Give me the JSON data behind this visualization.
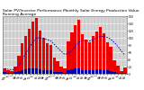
{
  "title": "Solar PV/Inverter Performance Monthly Solar Energy Production Value Running Average",
  "bar_color": "#ee0000",
  "line_color": "#0000cc",
  "small_bar_color": "#0000bb",
  "background_color": "#ffffff",
  "grid_color": "#ffffff",
  "plot_bg": "#cccccc",
  "months": [
    "My",
    "Jn",
    "Jl",
    "Ag",
    "Sp",
    "Oc",
    "Nv",
    "Dc",
    "Jn",
    "Fb",
    "Mr",
    "Ap",
    "My",
    "Jn",
    "Jl",
    "Ag",
    "Sp",
    "Oc",
    "Nv",
    "Dc",
    "Jn",
    "Fb",
    "Mr",
    "Ap",
    "My",
    "Jn",
    "Jl",
    "Ag",
    "Sp",
    "Oc",
    "Nv",
    "Dc",
    "Jn",
    "Fb",
    "Mr"
  ],
  "values": [
    15,
    10,
    8,
    20,
    50,
    85,
    105,
    125,
    145,
    155,
    120,
    100,
    85,
    80,
    45,
    35,
    20,
    15,
    90,
    115,
    135,
    150,
    110,
    95,
    88,
    105,
    118,
    130,
    112,
    88,
    75,
    38,
    22,
    8,
    18
  ],
  "small_values": [
    4,
    3,
    2,
    5,
    8,
    10,
    12,
    14,
    15,
    16,
    12,
    10,
    9,
    9,
    6,
    5,
    4,
    3,
    9,
    12,
    14,
    15,
    11,
    10,
    9,
    11,
    12,
    13,
    11,
    9,
    8,
    4,
    3,
    2,
    3
  ],
  "running_avg": [
    15,
    12,
    11,
    13,
    22,
    40,
    57,
    73,
    88,
    100,
    100,
    98,
    95,
    92,
    82,
    72,
    62,
    54,
    57,
    65,
    76,
    88,
    92,
    92,
    91,
    95,
    100,
    104,
    104,
    101,
    96,
    87,
    76,
    63,
    52
  ],
  "ylim": [
    0,
    160
  ],
  "yticks": [
    0,
    20,
    40,
    60,
    80,
    100,
    120,
    140,
    160
  ],
  "title_fontsize": 3.2,
  "tick_fontsize": 2.2
}
